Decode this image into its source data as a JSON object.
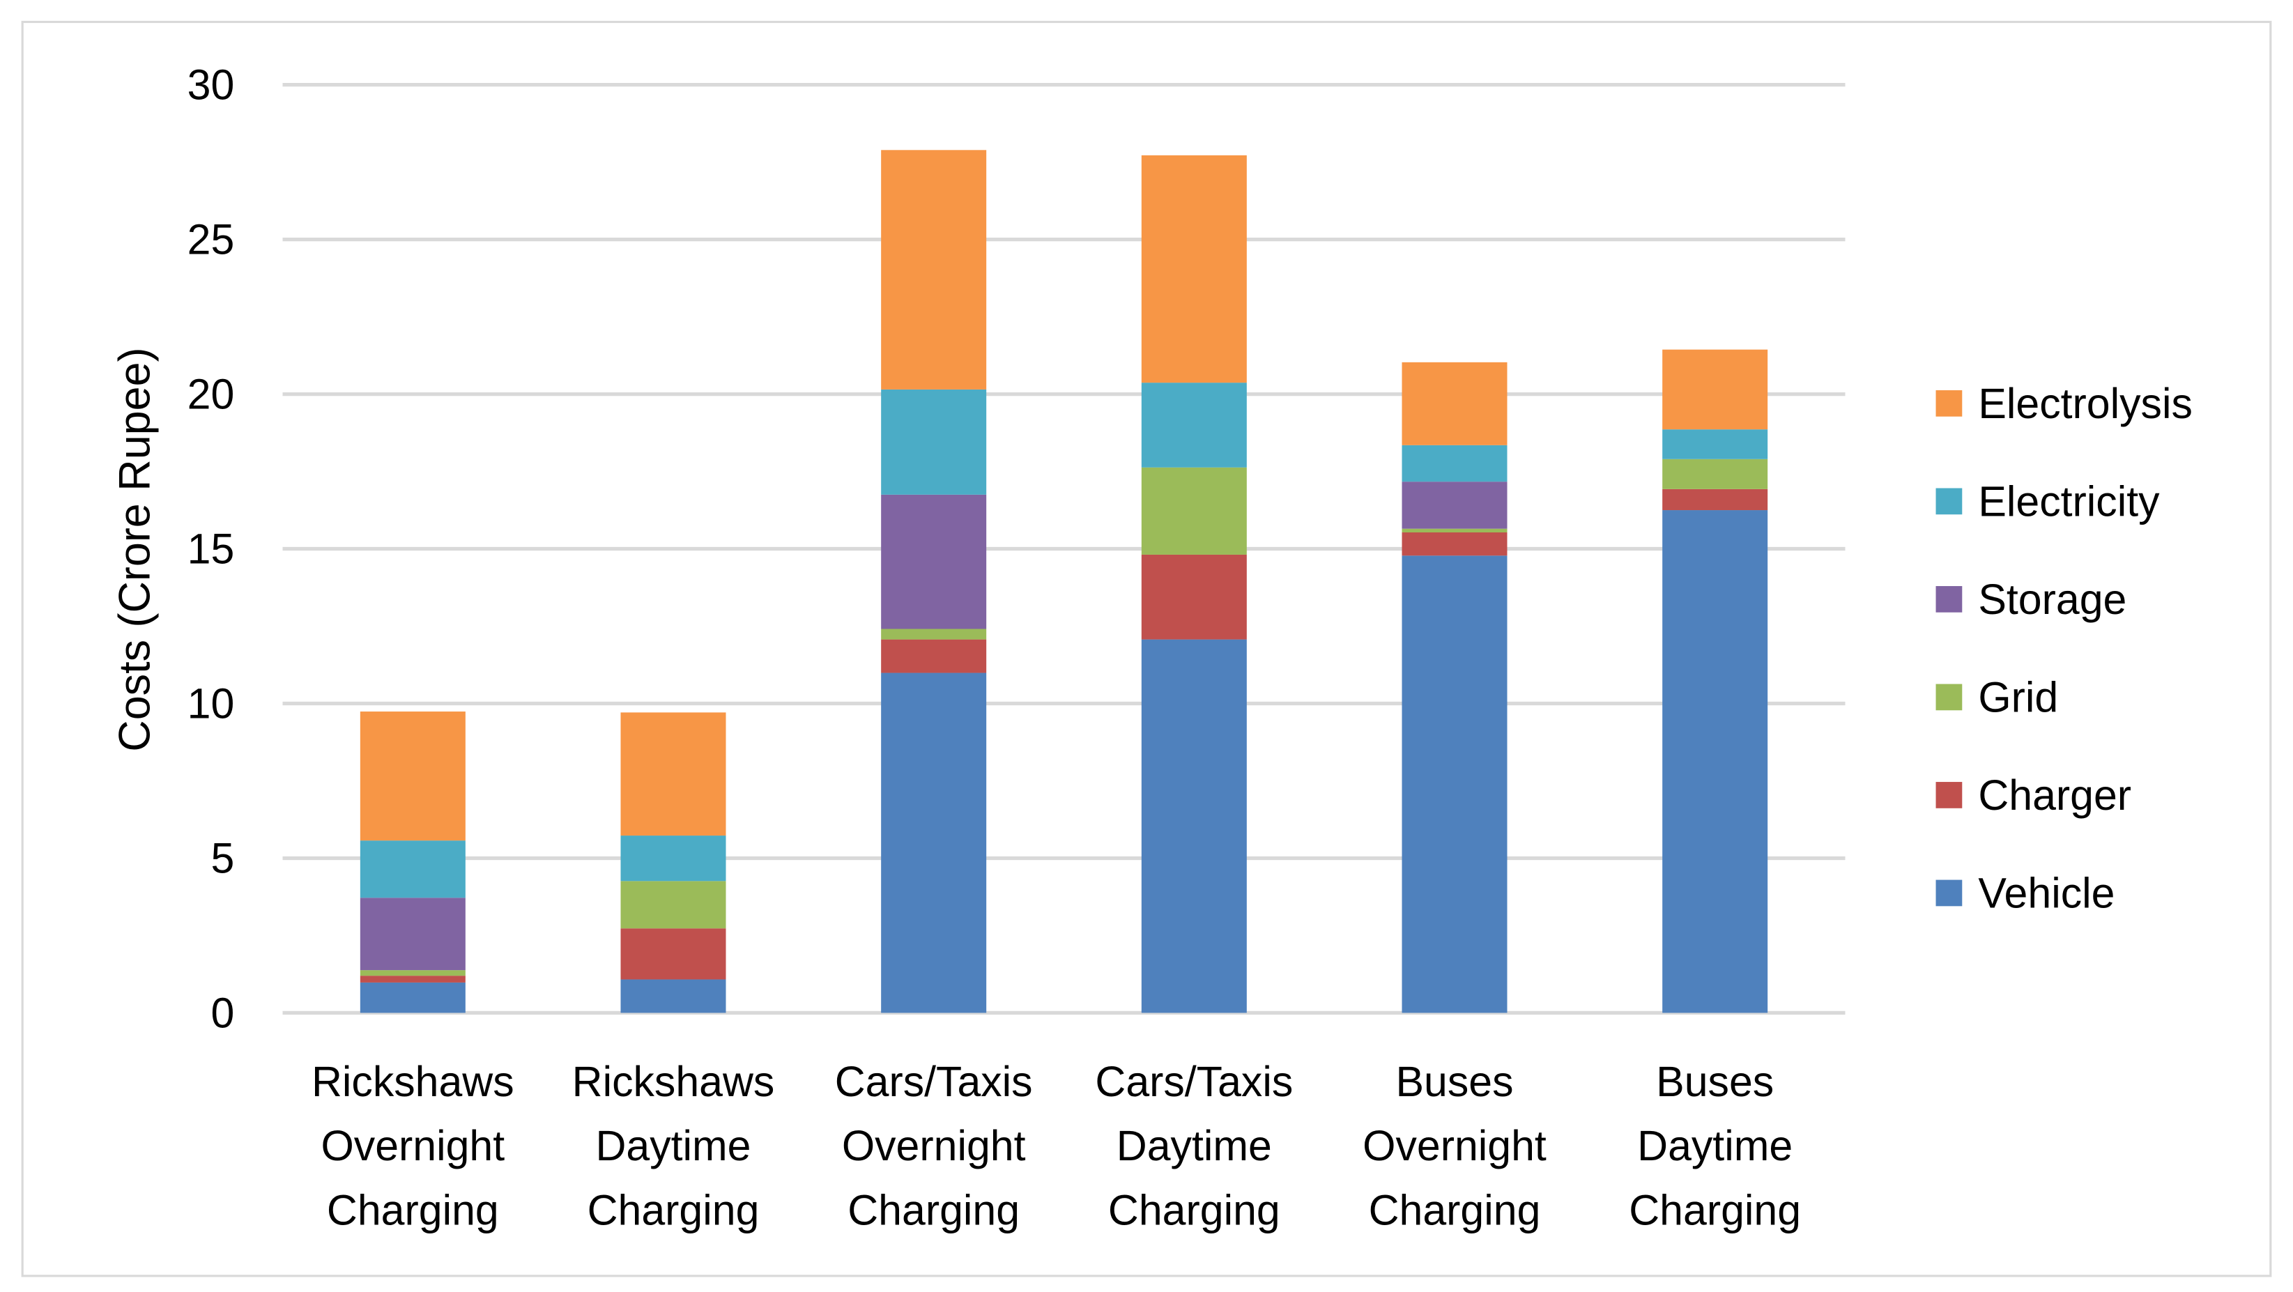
{
  "chart_data": {
    "type": "bar",
    "stacked": true,
    "title": "",
    "xlabel": "",
    "ylabel": "Costs (Crore Rupee)",
    "ylim": [
      0,
      30
    ],
    "yticks": [
      "0",
      "5",
      "10",
      "15",
      "20",
      "25",
      "30"
    ],
    "grid": true,
    "legend_position": "right",
    "categories": [
      [
        "Rickshaws",
        "Overnight",
        "Charging"
      ],
      [
        "Rickshaws",
        "Daytime",
        "Charging"
      ],
      [
        "Cars/Taxis",
        "Overnight",
        "Charging"
      ],
      [
        "Cars/Taxis",
        "Daytime",
        "Charging"
      ],
      [
        "Buses",
        "Overnight",
        "Charging"
      ],
      [
        "Buses",
        "Daytime",
        "Charging"
      ]
    ],
    "series": [
      {
        "name": "Vehicle",
        "color": "#4F81BD",
        "values": [
          0.98,
          1.08,
          10.99,
          12.07,
          14.78,
          16.25
        ]
      },
      {
        "name": "Charger",
        "color": "#C0504D",
        "values": [
          0.22,
          1.65,
          1.08,
          2.74,
          0.75,
          0.68
        ]
      },
      {
        "name": "Grid",
        "color": "#9BBB59",
        "values": [
          0.18,
          1.53,
          0.34,
          2.82,
          0.12,
          0.97
        ]
      },
      {
        "name": "Storage",
        "color": "#8064A2",
        "values": [
          2.34,
          0,
          4.34,
          0,
          1.52,
          0
        ]
      },
      {
        "name": "Electricity",
        "color": "#4BACC6",
        "values": [
          1.85,
          1.47,
          3.4,
          2.74,
          1.18,
          0.96
        ]
      },
      {
        "name": "Electrolysis",
        "color": "#F79646",
        "values": [
          4.17,
          3.98,
          7.74,
          7.35,
          2.68,
          2.58
        ]
      }
    ]
  }
}
